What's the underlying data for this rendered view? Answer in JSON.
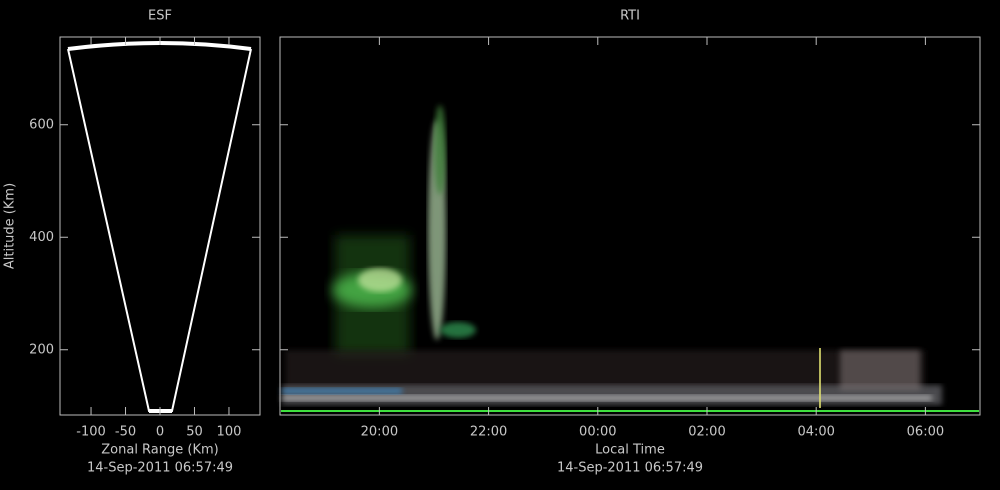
{
  "chart_data": [
    {
      "type": "esf",
      "title": "ESF",
      "xlabel": "Zonal Range (Km)",
      "ylabel": "Altitude (Km)",
      "timestamp": "14-Sep-2011 06:57:49",
      "xlim": [
        -145,
        145
      ],
      "xticks": [
        -100,
        -50,
        0,
        50,
        100
      ],
      "ylim": [
        84,
        756
      ],
      "yticks": [
        200,
        400,
        600
      ],
      "ytick_labels": true
    },
    {
      "type": "rti",
      "title": "RTI",
      "xlabel": "Local Time",
      "timestamp": "14-Sep-2011 06:57:49",
      "xlim": [
        18.18,
        31
      ],
      "xticks": [
        {
          "value": 20,
          "label": "20:00"
        },
        {
          "value": 22,
          "label": "22:00"
        },
        {
          "value": 24,
          "label": "00:00"
        },
        {
          "value": 26,
          "label": "02:00"
        },
        {
          "value": 28,
          "label": "04:00"
        },
        {
          "value": 30,
          "label": "06:00"
        }
      ],
      "ylim": [
        84,
        756
      ],
      "yticks": [
        200,
        400,
        600
      ],
      "ytick_labels": false
    }
  ]
}
